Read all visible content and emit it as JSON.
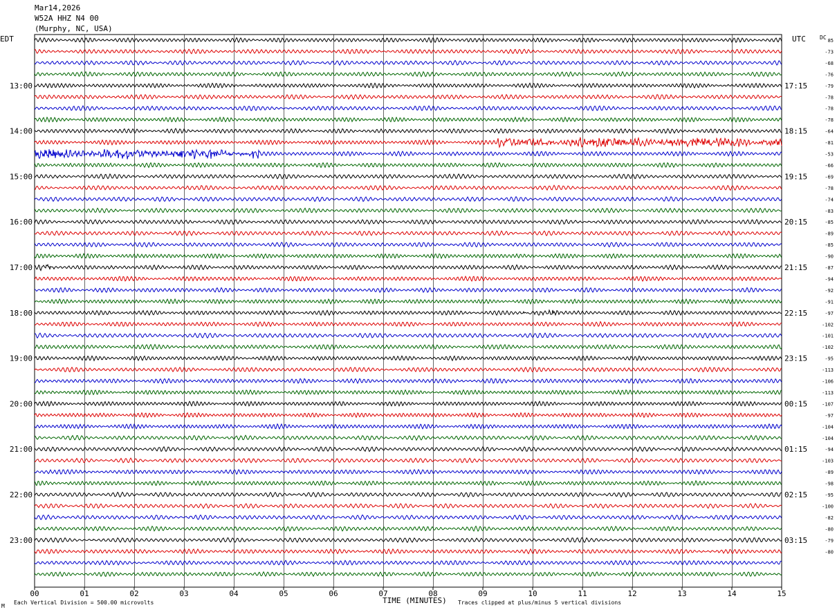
{
  "header": {
    "date": "Mar14,2026",
    "station": "W52A HHZ N4 00",
    "location": "(Murphy, NC, USA)"
  },
  "axes": {
    "left_label": "EDT",
    "right_label": "UTC",
    "dc_label": "DC",
    "xlabel": "TIME (MINUTES)",
    "footer_scale": "Each Vertical Division =  500.00 microvolts",
    "footer_clip": "Traces clipped at plus/minus 5 vertical divisions",
    "footer_mark": "M"
  },
  "colors": {
    "cycle": [
      "#000000",
      "#dd0000",
      "#0000cc",
      "#006600"
    ],
    "grid": "#000000"
  },
  "chart_data": {
    "type": "line",
    "title": "",
    "xlabel": "TIME (MINUTES)",
    "ylabel": "",
    "xlim": [
      0,
      15
    ],
    "x_tick_labels": [
      "00",
      "01",
      "02",
      "03",
      "04",
      "05",
      "06",
      "07",
      "08",
      "09",
      "10",
      "11",
      "12",
      "13",
      "14",
      "15"
    ],
    "grid": true,
    "row_count": 48,
    "minutes_per_row": 15,
    "left_hour_labels": [
      "13:00",
      "14:00",
      "15:00",
      "16:00",
      "17:00",
      "18:00",
      "19:00",
      "20:00",
      "21:00",
      "22:00",
      "23:00"
    ],
    "right_hour_labels": [
      "17:15",
      "18:15",
      "19:15",
      "20:15",
      "21:15",
      "22:15",
      "23:15",
      "00:15",
      "01:15",
      "02:15",
      "03:15"
    ],
    "dc_offsets": [
      "85",
      "-73",
      "-68",
      "-76",
      "-79",
      "-78",
      "-78",
      "-78",
      "-64",
      "-81",
      "-53",
      "-66",
      "-69",
      "-78",
      "-74",
      "-83",
      "-85",
      "-89",
      "-85",
      "-90",
      "-87",
      "-94",
      "-92",
      "-91",
      "-97",
      "-102",
      "-101",
      "-102",
      "-95",
      "-113",
      "-106",
      "-113",
      "-107",
      "-97",
      "-104",
      "-104",
      "-94",
      "-103",
      "-89",
      "-98",
      "-95",
      "-100",
      "-82",
      "-80",
      "-79",
      "-80"
    ],
    "events": [
      {
        "row": 9,
        "start_min": 9.3,
        "end_min": 15,
        "amplitude": 2.4,
        "note": "red trace burst"
      },
      {
        "row": 10,
        "start_min": 0,
        "end_min": 4.5,
        "amplitude": 2.6,
        "note": "blue trace burst"
      },
      {
        "row": 20,
        "start_min": 0.1,
        "end_min": 0.4,
        "amplitude": 1.8,
        "note": "black spike"
      },
      {
        "row": 24,
        "start_min": 9.8,
        "end_min": 10.6,
        "amplitude": 1.2,
        "note": "black wiggle"
      }
    ]
  }
}
